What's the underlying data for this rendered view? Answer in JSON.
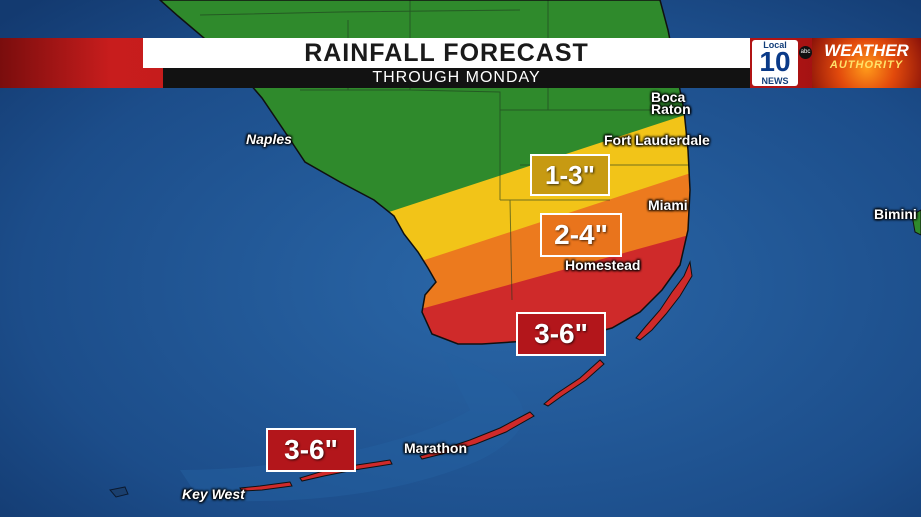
{
  "header": {
    "title": "RAINFALL FORECAST",
    "subtitle": "THROUGH MONDAY"
  },
  "logo": {
    "local": "Local",
    "number": "10",
    "news": "NEWS",
    "network": "abc",
    "weather": "WEATHER",
    "authority": "AUTHORITY"
  },
  "cities": {
    "naples": "Naples",
    "boca_raton_line1": "Boca",
    "boca_raton_line2": "Raton",
    "fort_lauderdale": "Fort Lauderdale",
    "miami": "Miami",
    "homestead": "Homestead",
    "bimini": "Bimini",
    "marathon": "Marathon",
    "key_west": "Key West"
  },
  "rain_labels": {
    "band_low": "1-3\"",
    "band_mid": "2-4\"",
    "band_high_mainland": "3-6\"",
    "band_high_keys": "3-6\""
  },
  "colors": {
    "water": "#1d4f8c",
    "band_green": "#2f8a2c",
    "band_yellow": "#f2c418",
    "band_orange": "#ec7a1e",
    "band_red": "#cf2a2a",
    "label_low_fill": "#c79a12",
    "label_mid_fill": "#e9741c",
    "label_high_fill": "#b3161b"
  }
}
